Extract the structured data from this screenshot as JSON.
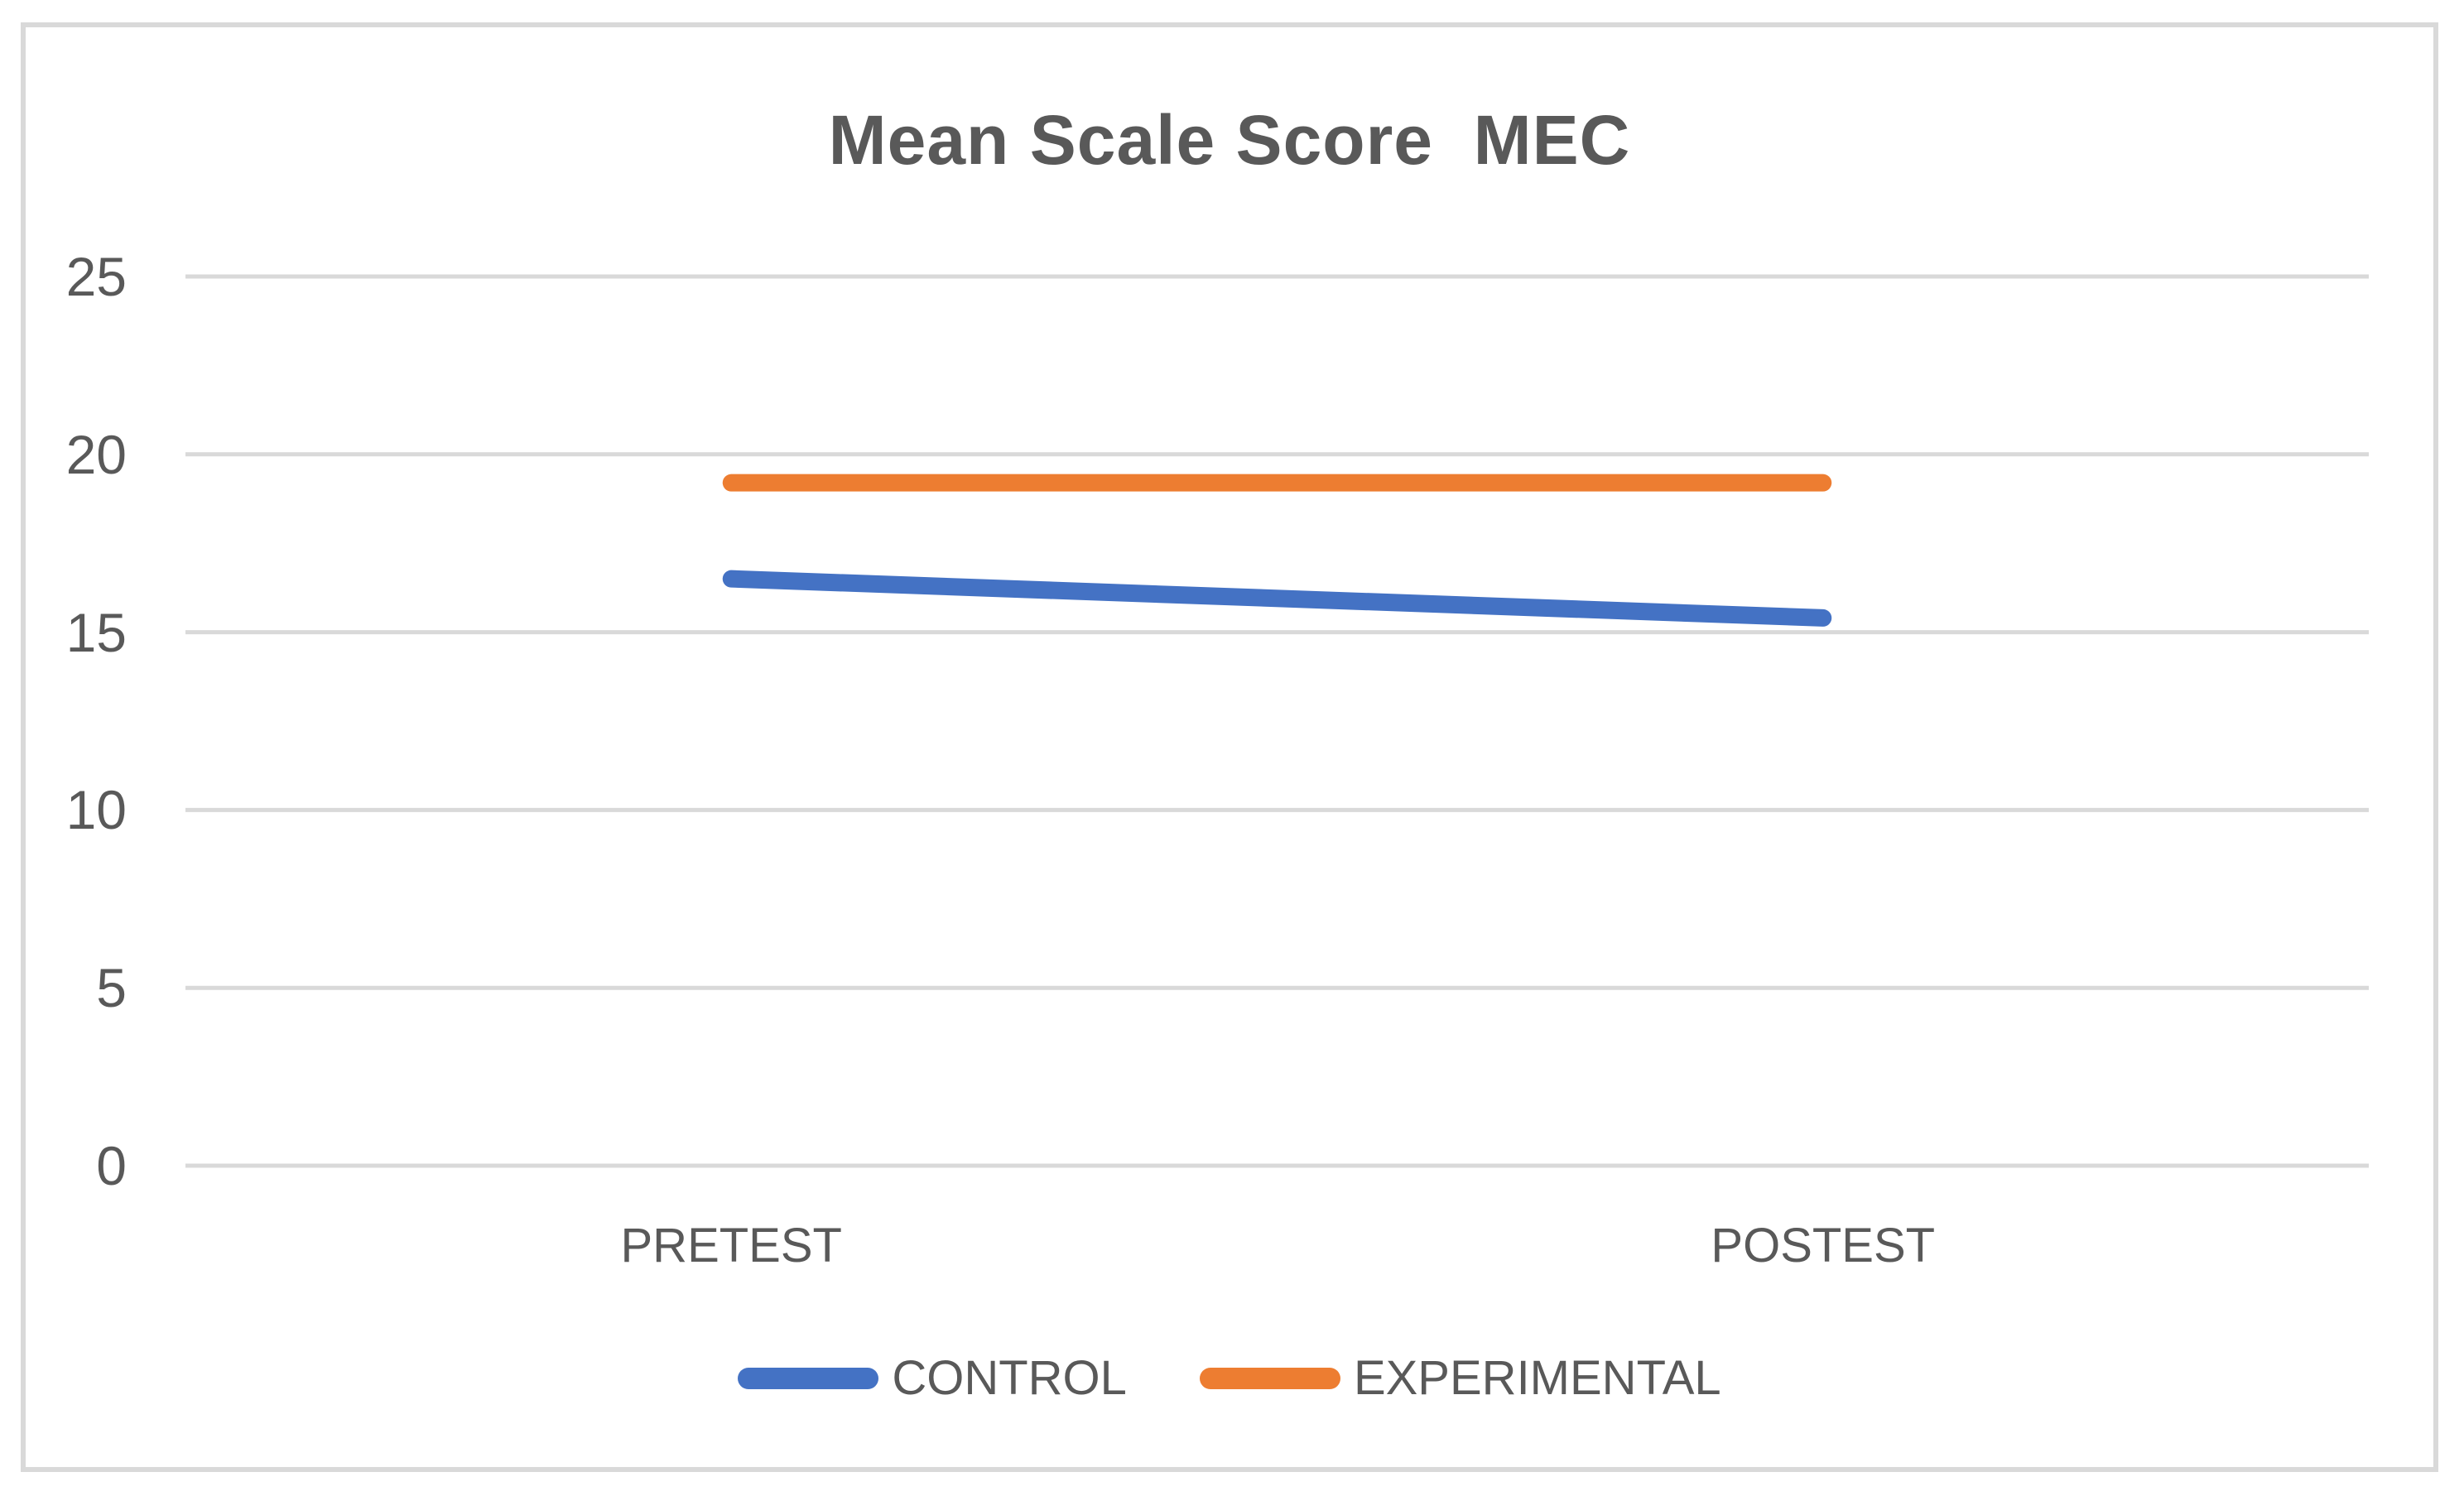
{
  "chart_data": {
    "type": "line",
    "title": "Mean Scale Score  MEC",
    "categories": [
      "PRETEST",
      "POSTEST"
    ],
    "series": [
      {
        "name": "CONTROL",
        "color": "#4472C4",
        "values": [
          16.5,
          15.4
        ]
      },
      {
        "name": "EXPERIMENTAL",
        "color": "#ED7D31",
        "values": [
          19.2,
          19.2
        ]
      }
    ],
    "y_ticks": [
      0,
      5,
      10,
      15,
      20,
      25
    ],
    "ylim": [
      0,
      25
    ],
    "xlabel": "",
    "ylabel": "",
    "grid": true,
    "legend_position": "bottom"
  },
  "colors": {
    "text": "#595959",
    "gridline": "#D9D9D9",
    "frame_border": "#D9D9D9",
    "background": "#FFFFFF"
  }
}
